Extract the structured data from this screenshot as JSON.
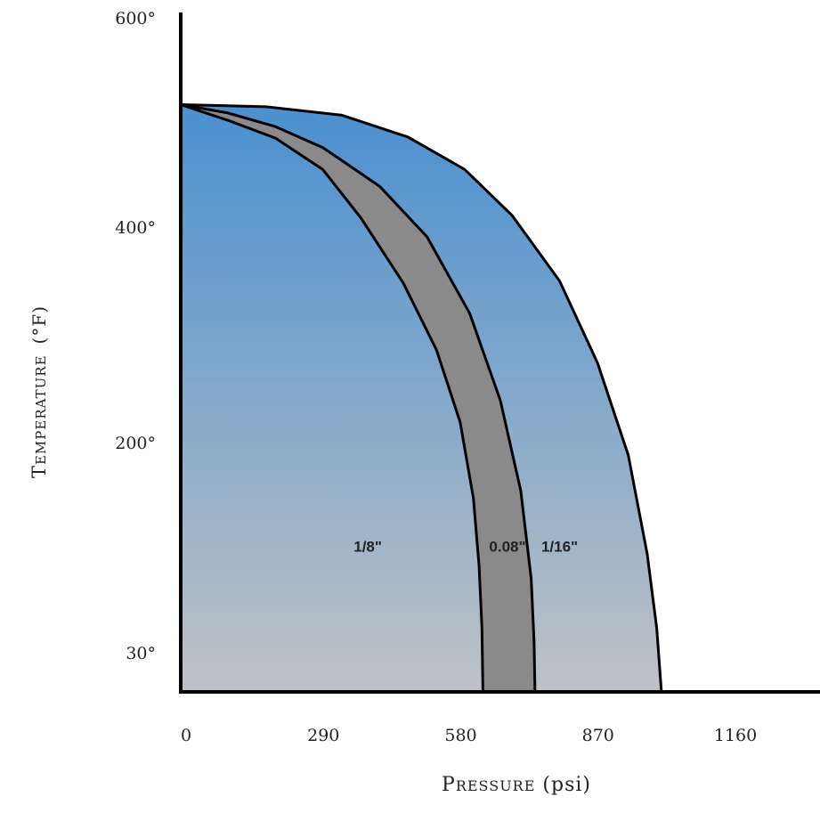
{
  "chart_data": {
    "type": "area",
    "xlabel": {
      "cap": "P",
      "rest": "RESSURE",
      "unit": " (psi)"
    },
    "ylabel": {
      "cap": "T",
      "rest": "EMPERATURE",
      "unit": "(°F)"
    },
    "x_ticks": [
      {
        "value": 0,
        "label": "0"
      },
      {
        "value": 290,
        "label": "290"
      },
      {
        "value": 580,
        "label": "580"
      },
      {
        "value": 870,
        "label": "870"
      },
      {
        "value": 1160,
        "label": "1160"
      }
    ],
    "y_ticks": [
      {
        "value": 30,
        "label": "30°"
      },
      {
        "value": 200,
        "label": "200°"
      },
      {
        "value": 400,
        "label": "400°"
      },
      {
        "value": 600,
        "label": "600°"
      }
    ],
    "series": [
      {
        "name": "1/16\"",
        "points": [
          [
            0,
            517
          ],
          [
            180,
            515
          ],
          [
            340,
            507
          ],
          [
            480,
            486
          ],
          [
            600,
            455
          ],
          [
            700,
            411
          ],
          [
            800,
            350
          ],
          [
            880,
            274
          ],
          [
            945,
            190
          ],
          [
            985,
            110
          ],
          [
            1005,
            50
          ],
          [
            1015,
            0
          ]
        ]
      },
      {
        "name": "0.08\"",
        "points": [
          [
            0,
            517
          ],
          [
            100,
            509
          ],
          [
            200,
            496
          ],
          [
            300,
            476
          ],
          [
            420,
            439
          ],
          [
            520,
            391
          ],
          [
            610,
            320
          ],
          [
            675,
            239
          ],
          [
            718,
            161
          ],
          [
            740,
            90
          ],
          [
            746,
            40
          ],
          [
            748,
            0
          ]
        ]
      },
      {
        "name": "1/8\"",
        "points": [
          [
            0,
            517
          ],
          [
            100,
            502
          ],
          [
            200,
            485
          ],
          [
            300,
            455
          ],
          [
            380,
            409
          ],
          [
            470,
            348
          ],
          [
            540,
            286
          ],
          [
            590,
            219
          ],
          [
            618,
            155
          ],
          [
            630,
            100
          ],
          [
            636,
            50
          ],
          [
            638,
            0
          ]
        ]
      }
    ],
    "labels": [
      {
        "text": "1/8\"",
        "x": 395,
        "y": 116
      },
      {
        "text": "0.08\"",
        "x": 690,
        "y": 116
      },
      {
        "text": "1/16\"",
        "x": 800,
        "y": 116
      }
    ],
    "colors": {
      "fill_top": "#4a90d0",
      "fill_bottom": "#bfc2c6",
      "band": "#8a8a8a",
      "line": "#000000"
    }
  }
}
